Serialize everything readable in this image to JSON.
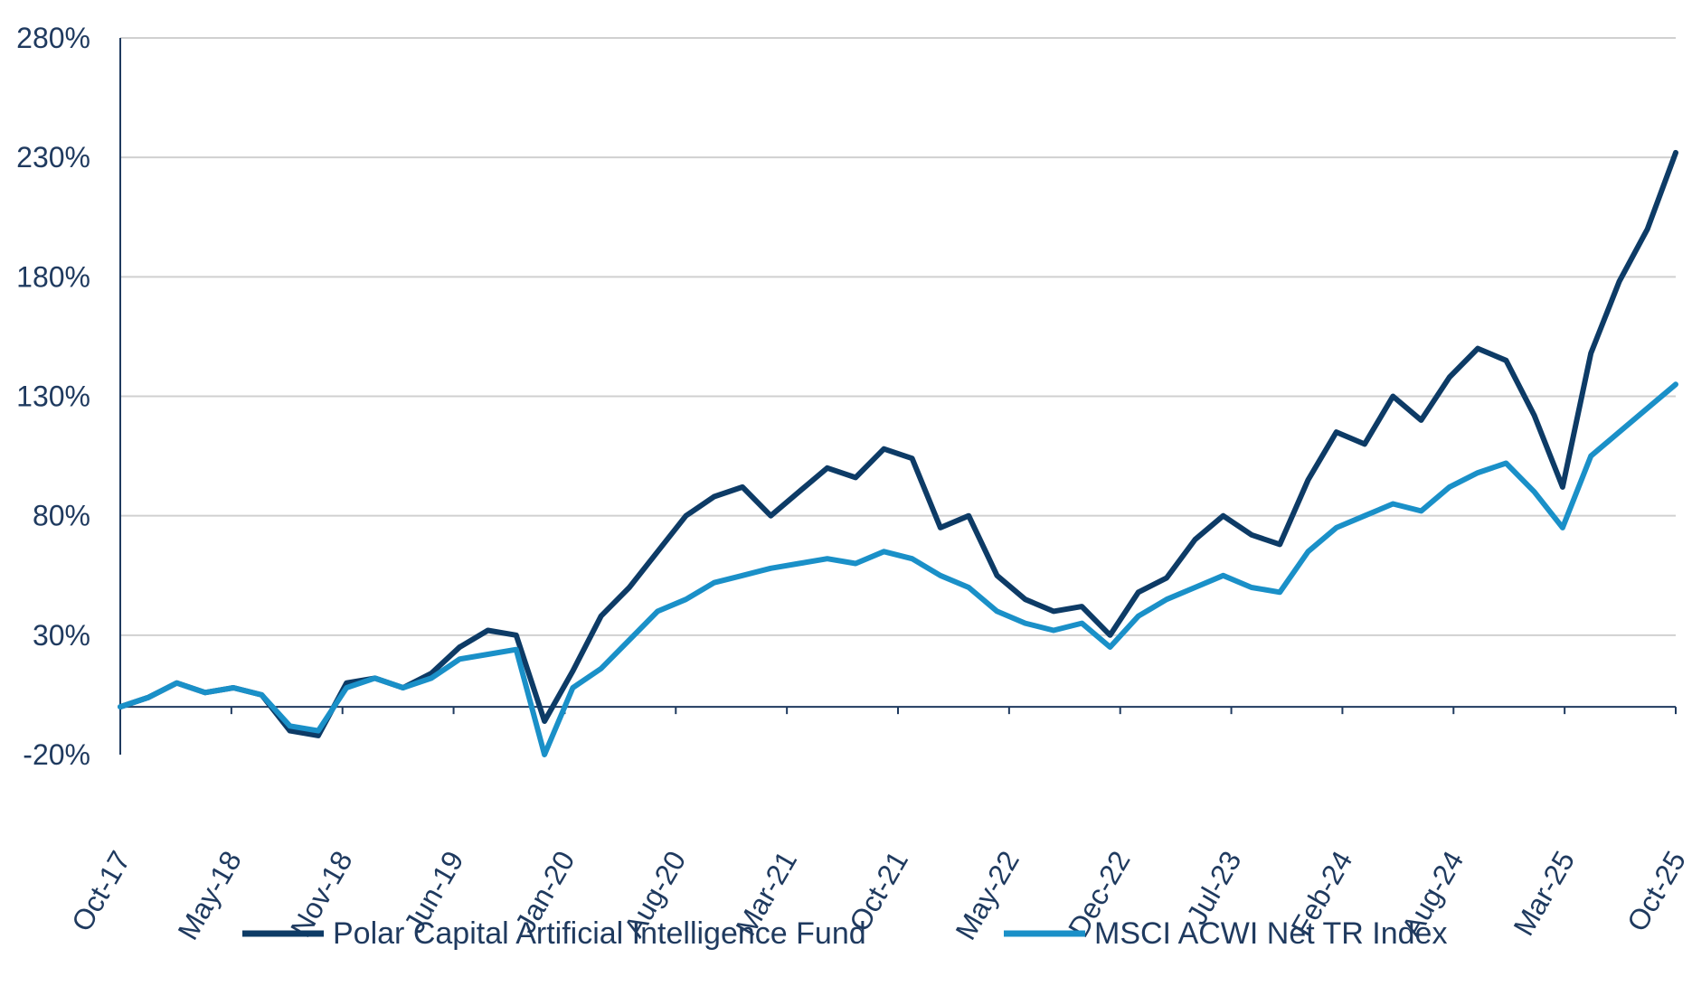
{
  "chart_data": {
    "type": "line",
    "title": "",
    "xlabel": "",
    "ylabel": "",
    "ylim": [
      -20,
      280
    ],
    "yticks": [
      "280%",
      "230%",
      "180%",
      "130%",
      "80%",
      "30%",
      "-20%"
    ],
    "ytick_values": [
      280,
      230,
      180,
      130,
      80,
      30,
      -20
    ],
    "xticks": [
      "Oct-17",
      "May-18",
      "Nov-18",
      "Jun-19",
      "Jan-20",
      "Aug-20",
      "Mar-21",
      "Oct-21",
      "May-22",
      "Dec-22",
      "Jul-23",
      "Feb-24",
      "Aug-24",
      "Mar-25",
      "Oct-25"
    ],
    "grid": "horizontal",
    "legend_position": "bottom",
    "x": [
      "Oct-17",
      "Jan-18",
      "Mar-18",
      "May-18",
      "Aug-18",
      "Oct-18",
      "Nov-18",
      "Dec-18",
      "Mar-19",
      "Jun-19",
      "Aug-19",
      "Oct-19",
      "Dec-19",
      "Jan-20",
      "Feb-20",
      "Mar-20",
      "Apr-20",
      "Jun-20",
      "Aug-20",
      "Oct-20",
      "Dec-20",
      "Feb-21",
      "Mar-21",
      "May-21",
      "Jul-21",
      "Sep-21",
      "Oct-21",
      "Nov-21",
      "Dec-21",
      "Jan-22",
      "Mar-22",
      "May-22",
      "Jul-22",
      "Sep-22",
      "Oct-22",
      "Dec-22",
      "Feb-23",
      "Apr-23",
      "Jul-23",
      "Sep-23",
      "Oct-23",
      "Dec-23",
      "Feb-24",
      "Apr-24",
      "Jun-24",
      "Jul-24",
      "Aug-24",
      "Oct-24",
      "Dec-24",
      "Feb-25",
      "Mar-25",
      "Apr-25",
      "Jun-25",
      "Aug-25",
      "Sep-25",
      "Oct-25"
    ],
    "series": [
      {
        "name": "Polar Capital Artificial Intelligence Fund",
        "color": "#0d3b66",
        "values": [
          0,
          4,
          10,
          6,
          8,
          5,
          -10,
          -12,
          10,
          12,
          8,
          14,
          25,
          32,
          30,
          -6,
          15,
          38,
          50,
          65,
          80,
          88,
          92,
          80,
          90,
          100,
          96,
          108,
          104,
          75,
          80,
          55,
          45,
          40,
          42,
          30,
          48,
          54,
          70,
          80,
          72,
          68,
          95,
          115,
          110,
          130,
          120,
          138,
          150,
          145,
          122,
          92,
          148,
          178,
          200,
          232
        ]
      },
      {
        "name": "MSCI ACWI Net TR Index",
        "color": "#1a90c8",
        "values": [
          0,
          4,
          10,
          6,
          8,
          5,
          -8,
          -10,
          8,
          12,
          8,
          12,
          20,
          22,
          24,
          -20,
          8,
          16,
          28,
          40,
          45,
          52,
          55,
          58,
          60,
          62,
          60,
          65,
          62,
          55,
          50,
          40,
          35,
          32,
          35,
          25,
          38,
          45,
          50,
          55,
          50,
          48,
          65,
          75,
          80,
          85,
          82,
          92,
          98,
          102,
          90,
          75,
          105,
          115,
          125,
          135
        ]
      }
    ]
  }
}
